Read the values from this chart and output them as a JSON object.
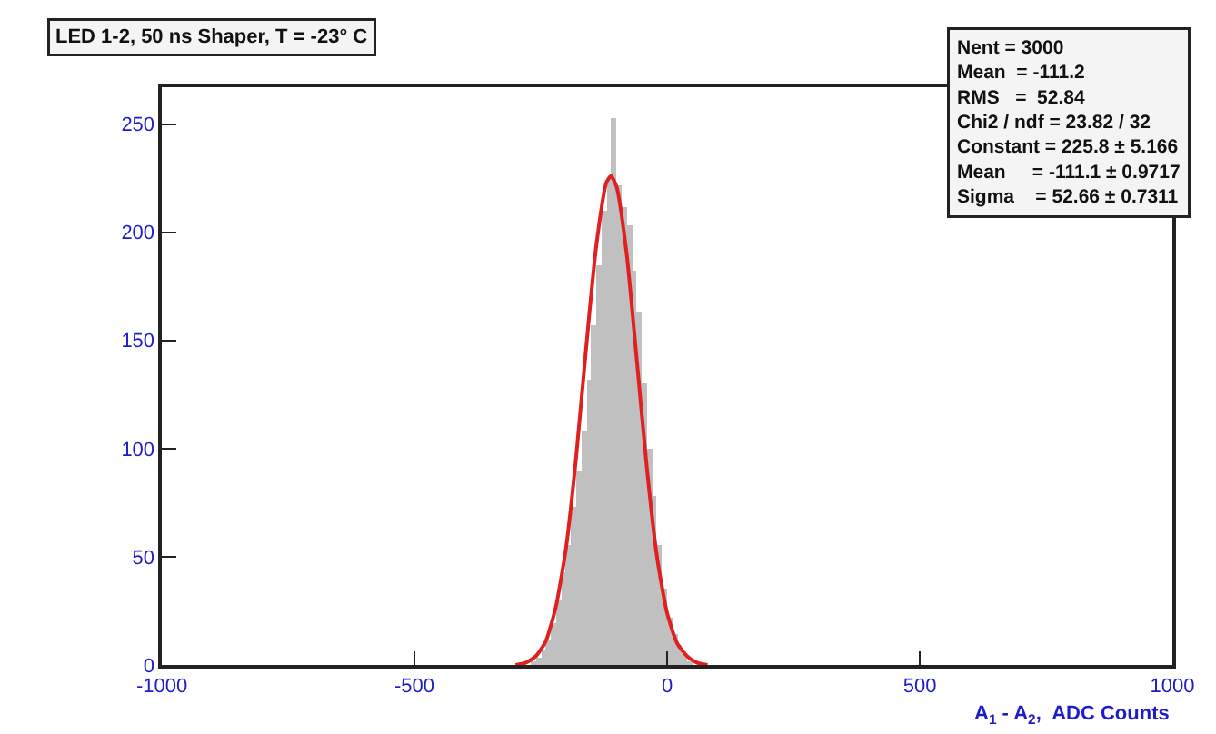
{
  "chart_data": {
    "type": "histogram",
    "title": "LED 1-2, 50 ns Shaper, T = -23° C",
    "xlabel": "A$_{1}$ - A$_{2}$,  ADC Counts",
    "series": [
      {
        "type": "histogram",
        "color": "#c0c0c0",
        "bins": [
          -270,
          -260,
          -250,
          -240,
          -230,
          -220,
          -210,
          -200,
          -190,
          -180,
          -170,
          -160,
          -150,
          -140,
          -130,
          -120,
          -110,
          -100,
          -90,
          -80,
          -70,
          -60,
          -50,
          -40,
          -30,
          -20,
          -10,
          0,
          10,
          20,
          30,
          40,
          50
        ],
        "values": [
          1,
          3,
          7,
          12,
          19,
          30,
          43,
          55,
          73,
          90,
          108,
          132,
          157,
          185,
          210,
          225,
          253,
          222,
          212,
          203,
          182,
          163,
          130,
          100,
          78,
          55,
          35,
          22,
          14,
          9,
          5,
          2
        ]
      },
      {
        "type": "line",
        "color": "#e02020",
        "x": [
          -300,
          -280,
          -260,
          -240,
          -220,
          -200,
          -180,
          -160,
          -140,
          -120,
          -111,
          -100,
          -80,
          -60,
          -40,
          -20,
          0,
          20,
          40,
          60,
          80
        ],
        "values": [
          0,
          1,
          4,
          11,
          27,
          54,
          96,
          147,
          194,
          223,
          226,
          221,
          190,
          141,
          91,
          50,
          24,
          10,
          4,
          1,
          0
        ]
      }
    ],
    "xlim": [
      -1000,
      1000
    ],
    "xticks": [
      -1000,
      -500,
      0,
      500,
      1000
    ],
    "ylim": [
      0,
      267
    ],
    "yticks": [
      0,
      50,
      100,
      150,
      200,
      250
    ],
    "marker": "none",
    "line_style": "solid",
    "annotations": [
      "Nent = 3000\nMean  = -111.2\nRMS   =  52.84\nChi2 / ndf = 23.82 / 32\nConstant = 225.8 ± 5.166\nMean     = -111.1 ± 0.9717\nSigma    = 52.66 ± 0.7311"
    ]
  }
}
